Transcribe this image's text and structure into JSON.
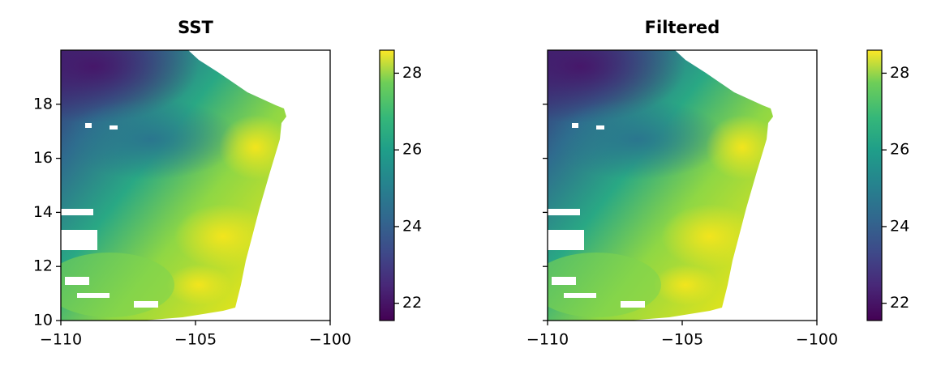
{
  "chart_data": [
    {
      "type": "heatmap",
      "title": "SST",
      "colormap": "viridis",
      "xlim": [
        -110,
        -100
      ],
      "xticks": [
        {
          "value": -110,
          "label": "−110"
        },
        {
          "value": -105,
          "label": "−105"
        },
        {
          "value": -100,
          "label": "−100"
        }
      ],
      "ylim": [
        10,
        20
      ],
      "yticks": [
        10,
        12,
        14,
        16,
        18
      ],
      "show_ytick_labels": true,
      "colorbar": {
        "lim": [
          21.55,
          28.6
        ],
        "ticks": [
          22,
          24,
          26,
          28
        ]
      }
    },
    {
      "type": "heatmap",
      "title": "Filtered",
      "colormap": "viridis",
      "xlim": [
        -110,
        -100
      ],
      "xticks": [
        {
          "value": -110,
          "label": "−110"
        },
        {
          "value": -105,
          "label": "−105"
        },
        {
          "value": -100,
          "label": "−100"
        }
      ],
      "ylim": [
        10,
        20
      ],
      "yticks": [
        10,
        12,
        14,
        16,
        18
      ],
      "show_ytick_labels": false,
      "colorbar": {
        "lim": [
          21.55,
          28.6
        ],
        "ticks": [
          22,
          24,
          26,
          28
        ]
      }
    }
  ]
}
